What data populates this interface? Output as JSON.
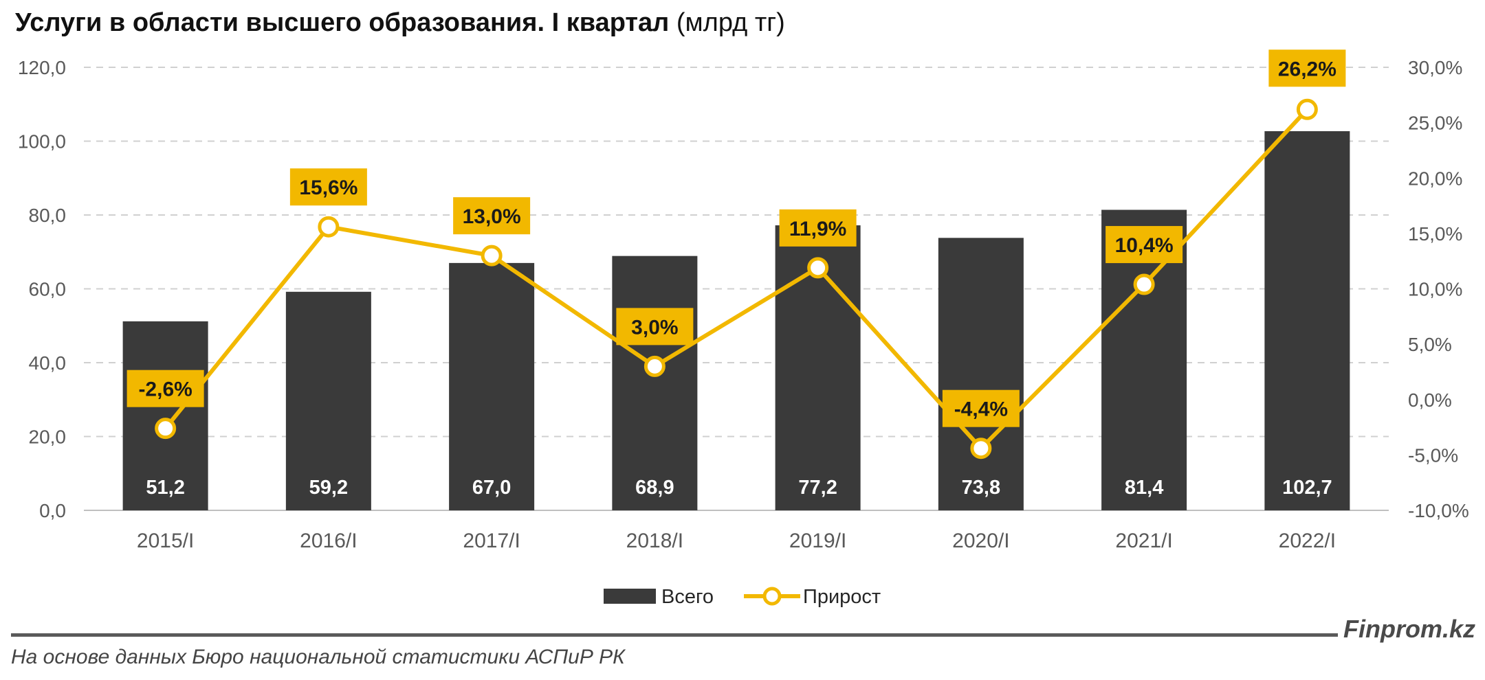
{
  "title": {
    "main": "Услуги в области высшего образования. I квартал",
    "unit": "(млрд тг)"
  },
  "chart_data": {
    "type": "bar",
    "categories": [
      "2015/I",
      "2016/I",
      "2017/I",
      "2018/I",
      "2019/I",
      "2020/I",
      "2021/I",
      "2022/I"
    ],
    "series": [
      {
        "name": "Всего",
        "type": "bar",
        "axis": "left",
        "values": [
          51.2,
          59.2,
          67.0,
          68.9,
          77.2,
          73.8,
          81.4,
          102.7
        ],
        "labels": [
          "51,2",
          "59,2",
          "67,0",
          "68,9",
          "77,2",
          "73,8",
          "81,4",
          "102,7"
        ]
      },
      {
        "name": "Прирост",
        "type": "line",
        "axis": "right",
        "values": [
          -2.6,
          15.6,
          13.0,
          3.0,
          11.9,
          -4.4,
          10.4,
          26.2
        ],
        "labels": [
          "-2,6%",
          "15,6%",
          "13,0%",
          "3,0%",
          "11,9%",
          "-4,4%",
          "10,4%",
          "26,2%"
        ]
      }
    ],
    "left_axis": {
      "min": 0,
      "max": 120,
      "ticks": [
        "0,0",
        "20,0",
        "40,0",
        "60,0",
        "80,0",
        "100,0",
        "120,0"
      ]
    },
    "right_axis": {
      "min": -10,
      "max": 30,
      "ticks": [
        "-10,0%",
        "-5,0%",
        "0,0%",
        "5,0%",
        "10,0%",
        "15,0%",
        "20,0%",
        "25,0%",
        "30,0%"
      ]
    },
    "grid": true,
    "legend_position": "bottom-center",
    "colors": {
      "bar": "#3a3a3a",
      "line": "#f2b800",
      "label_bg": "#f2b800"
    }
  },
  "footer": {
    "brand": "Finprom.kz",
    "source": "На основе данных Бюро национальной статистики АСПиР РК"
  }
}
